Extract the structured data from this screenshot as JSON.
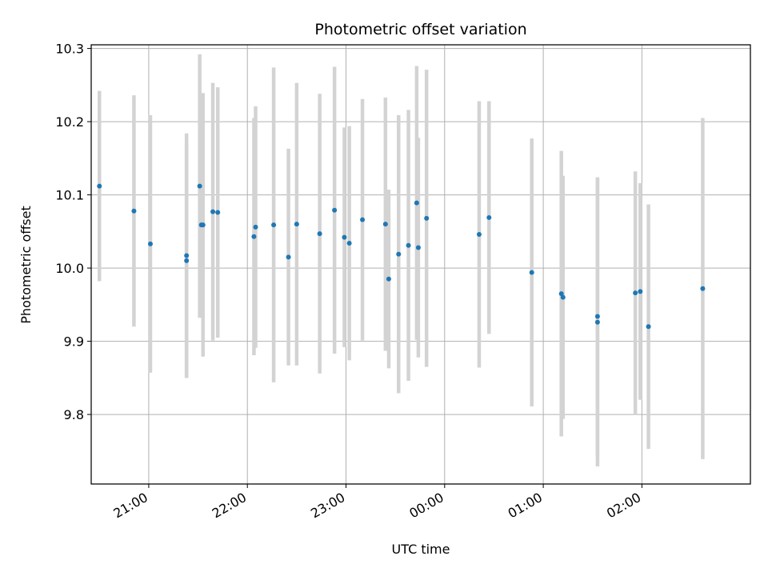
{
  "chart_data": {
    "type": "scatter",
    "title": "Photometric offset variation",
    "xlabel": "UTC time",
    "ylabel": "Photometric offset",
    "x_unit": "UTC time (HH:MM), consecutive night",
    "xlim": [
      "20:25",
      "03:06"
    ],
    "ylim": [
      9.705,
      10.305
    ],
    "grid": true,
    "x_tick_labels": [
      "21:00",
      "22:00",
      "23:00",
      "00:00",
      "01:00",
      "02:00"
    ],
    "y_ticks": [
      9.8,
      9.9,
      10.0,
      10.1,
      10.2,
      10.3
    ],
    "y_tick_labels": [
      "9.8",
      "9.9",
      "10.0",
      "10.1",
      "10.2",
      "10.3"
    ],
    "series": [
      {
        "marker_color": "#1f77b4",
        "errorbar_color": "#d3d3d3",
        "points": [
          {
            "x": "20:30",
            "y": 10.112,
            "err": 0.13
          },
          {
            "x": "20:51",
            "y": 10.078,
            "err": 0.158
          },
          {
            "x": "21:01",
            "y": 10.033,
            "err": 0.176
          },
          {
            "x": "21:23",
            "y": 10.017,
            "err": 0.167
          },
          {
            "x": "21:23",
            "y": 10.01,
            "err": 0.16
          },
          {
            "x": "21:31",
            "y": 10.112,
            "err": 0.18
          },
          {
            "x": "21:32",
            "y": 10.059,
            "err": 0.125
          },
          {
            "x": "21:33",
            "y": 10.059,
            "err": 0.18
          },
          {
            "x": "21:39",
            "y": 10.077,
            "err": 0.176
          },
          {
            "x": "21:42",
            "y": 10.076,
            "err": 0.171
          },
          {
            "x": "22:04",
            "y": 10.043,
            "err": 0.162
          },
          {
            "x": "22:05",
            "y": 10.056,
            "err": 0.165
          },
          {
            "x": "22:16",
            "y": 10.059,
            "err": 0.215
          },
          {
            "x": "22:25",
            "y": 10.015,
            "err": 0.148
          },
          {
            "x": "22:30",
            "y": 10.06,
            "err": 0.193
          },
          {
            "x": "22:44",
            "y": 10.047,
            "err": 0.191
          },
          {
            "x": "22:53",
            "y": 10.079,
            "err": 0.196
          },
          {
            "x": "22:59",
            "y": 10.042,
            "err": 0.15
          },
          {
            "x": "23:02",
            "y": 10.034,
            "err": 0.16
          },
          {
            "x": "23:10",
            "y": 10.066,
            "err": 0.165
          },
          {
            "x": "23:24",
            "y": 10.06,
            "err": 0.173
          },
          {
            "x": "23:26",
            "y": 9.985,
            "err": 0.122
          },
          {
            "x": "23:32",
            "y": 10.019,
            "err": 0.19
          },
          {
            "x": "23:38",
            "y": 10.031,
            "err": 0.185
          },
          {
            "x": "23:43",
            "y": 10.089,
            "err": 0.187
          },
          {
            "x": "23:44",
            "y": 10.028,
            "err": 0.15
          },
          {
            "x": "23:49",
            "y": 10.068,
            "err": 0.203
          },
          {
            "x": "00:21",
            "y": 10.046,
            "err": 0.182
          },
          {
            "x": "00:27",
            "y": 10.069,
            "err": 0.159
          },
          {
            "x": "00:53",
            "y": 9.994,
            "err": 0.183
          },
          {
            "x": "01:11",
            "y": 9.965,
            "err": 0.195
          },
          {
            "x": "01:12",
            "y": 9.96,
            "err": 0.166
          },
          {
            "x": "01:33",
            "y": 9.934,
            "err": 0.19
          },
          {
            "x": "01:33",
            "y": 9.926,
            "err": 0.197
          },
          {
            "x": "01:56",
            "y": 9.966,
            "err": 0.166
          },
          {
            "x": "01:59",
            "y": 9.968,
            "err": 0.148
          },
          {
            "x": "02:04",
            "y": 9.92,
            "err": 0.167
          },
          {
            "x": "02:37",
            "y": 9.972,
            "err": 0.233
          }
        ]
      }
    ]
  }
}
